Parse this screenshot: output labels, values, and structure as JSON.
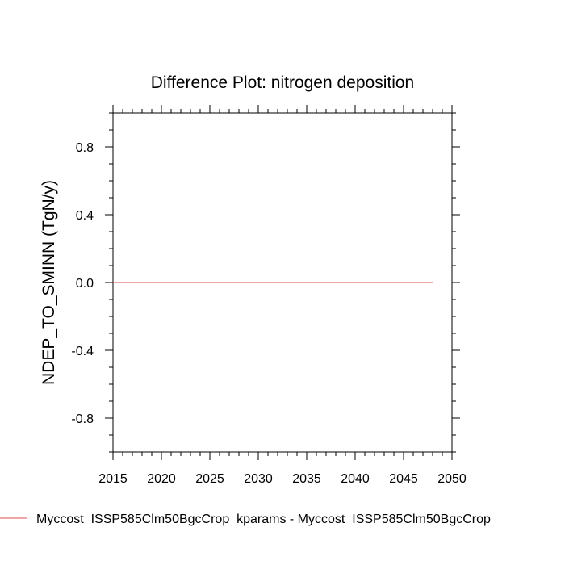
{
  "chart_data": {
    "type": "line",
    "title": "Difference Plot: nitrogen deposition",
    "xlabel": "",
    "ylabel": "NDEP_TO_SMINN  (TgN/y)",
    "xlim": [
      2015,
      2050
    ],
    "ylim": [
      -1.0,
      1.0
    ],
    "x_ticks": [
      2015,
      2020,
      2025,
      2030,
      2035,
      2040,
      2045,
      2050
    ],
    "x_tick_labels": [
      "2015",
      "2020",
      "2025",
      "2030",
      "2035",
      "2040",
      "2045",
      "2050"
    ],
    "y_ticks": [
      0.8,
      0.4,
      0.0,
      -0.4,
      -0.8
    ],
    "y_tick_labels": [
      "0.8",
      "0.4",
      "0.0",
      "-0.4",
      "-0.8"
    ],
    "grid": false,
    "legend_position": "bottom-left",
    "series": [
      {
        "name": "Myccost_ISSP585Clm50BgcCrop_kparams - Myccost_ISSP585Clm50BgcCrop",
        "color": "#e07070",
        "x": [
          2015,
          2048
        ],
        "y": [
          0.0,
          0.0
        ]
      }
    ]
  }
}
